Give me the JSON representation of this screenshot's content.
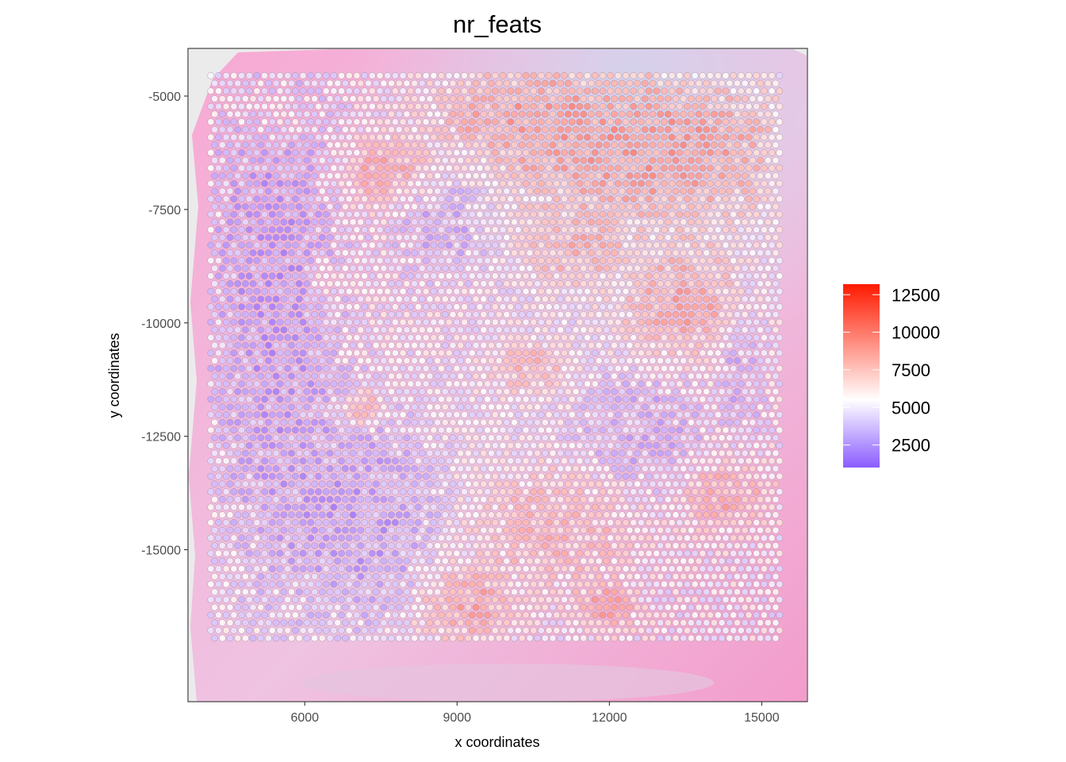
{
  "chart_data": {
    "type": "scatter",
    "title": "nr_feats",
    "xlabel": "x coordinates",
    "ylabel": "y coordinates",
    "xlim": [
      3700,
      15900
    ],
    "ylim": [
      -18350,
      -3950
    ],
    "x_ticks": [
      6000,
      9000,
      12000,
      15000
    ],
    "y_ticks": [
      -5000,
      -7500,
      -10000,
      -12500,
      -15000
    ],
    "grid": false,
    "spot_grid": {
      "x_range": [
        4150,
        15350
      ],
      "y_range": [
        -16950,
        -4550
      ],
      "rows": 74,
      "cols": 75
    },
    "color_scale": {
      "min": 1000,
      "mid": 5500,
      "max": 13200,
      "low_color": "#8a5cff",
      "mid_color": "#ffffff",
      "high_color": "#ff1a00",
      "breaks": [
        2500,
        5000,
        7500,
        10000,
        12500
      ],
      "legend_position": "right"
    },
    "regions": [
      {
        "cx": 5400,
        "cy": -9500,
        "rx": 1200,
        "ry": 5500,
        "value": 2200
      },
      {
        "cx": 7000,
        "cy": -14200,
        "rx": 1500,
        "ry": 2200,
        "value": 2300
      },
      {
        "cx": 12800,
        "cy": -6200,
        "rx": 2500,
        "ry": 1600,
        "value": 10000
      },
      {
        "cx": 10500,
        "cy": -5500,
        "rx": 1800,
        "ry": 1100,
        "value": 9500
      },
      {
        "cx": 7600,
        "cy": -6700,
        "rx": 900,
        "ry": 700,
        "value": 9000
      },
      {
        "cx": 13500,
        "cy": -9500,
        "rx": 1200,
        "ry": 1200,
        "value": 9200
      },
      {
        "cx": 11300,
        "cy": -8300,
        "rx": 1000,
        "ry": 800,
        "value": 8500
      },
      {
        "cx": 14300,
        "cy": -13800,
        "rx": 900,
        "ry": 800,
        "value": 8800
      },
      {
        "cx": 11000,
        "cy": -14500,
        "rx": 1600,
        "ry": 1300,
        "value": 8200
      },
      {
        "cx": 9200,
        "cy": -16200,
        "rx": 900,
        "ry": 800,
        "value": 9200
      },
      {
        "cx": 11900,
        "cy": -16300,
        "rx": 600,
        "ry": 500,
        "value": 9500
      },
      {
        "cx": 7200,
        "cy": -11900,
        "rx": 350,
        "ry": 350,
        "value": 10500
      },
      {
        "cx": 12600,
        "cy": -12500,
        "rx": 1200,
        "ry": 1300,
        "value": 3000
      },
      {
        "cx": 8700,
        "cy": -7800,
        "rx": 900,
        "ry": 1200,
        "value": 3200
      },
      {
        "cx": 14600,
        "cy": -10800,
        "rx": 400,
        "ry": 1700,
        "value": 3000
      },
      {
        "cx": 10400,
        "cy": -11000,
        "rx": 700,
        "ry": 500,
        "value": 8400
      },
      {
        "cx": 6400,
        "cy": -9000,
        "rx": 350,
        "ry": 350,
        "value": 8000
      },
      {
        "cx": 5400,
        "cy": -5300,
        "rx": 800,
        "ry": 600,
        "value": 6500
      }
    ]
  }
}
